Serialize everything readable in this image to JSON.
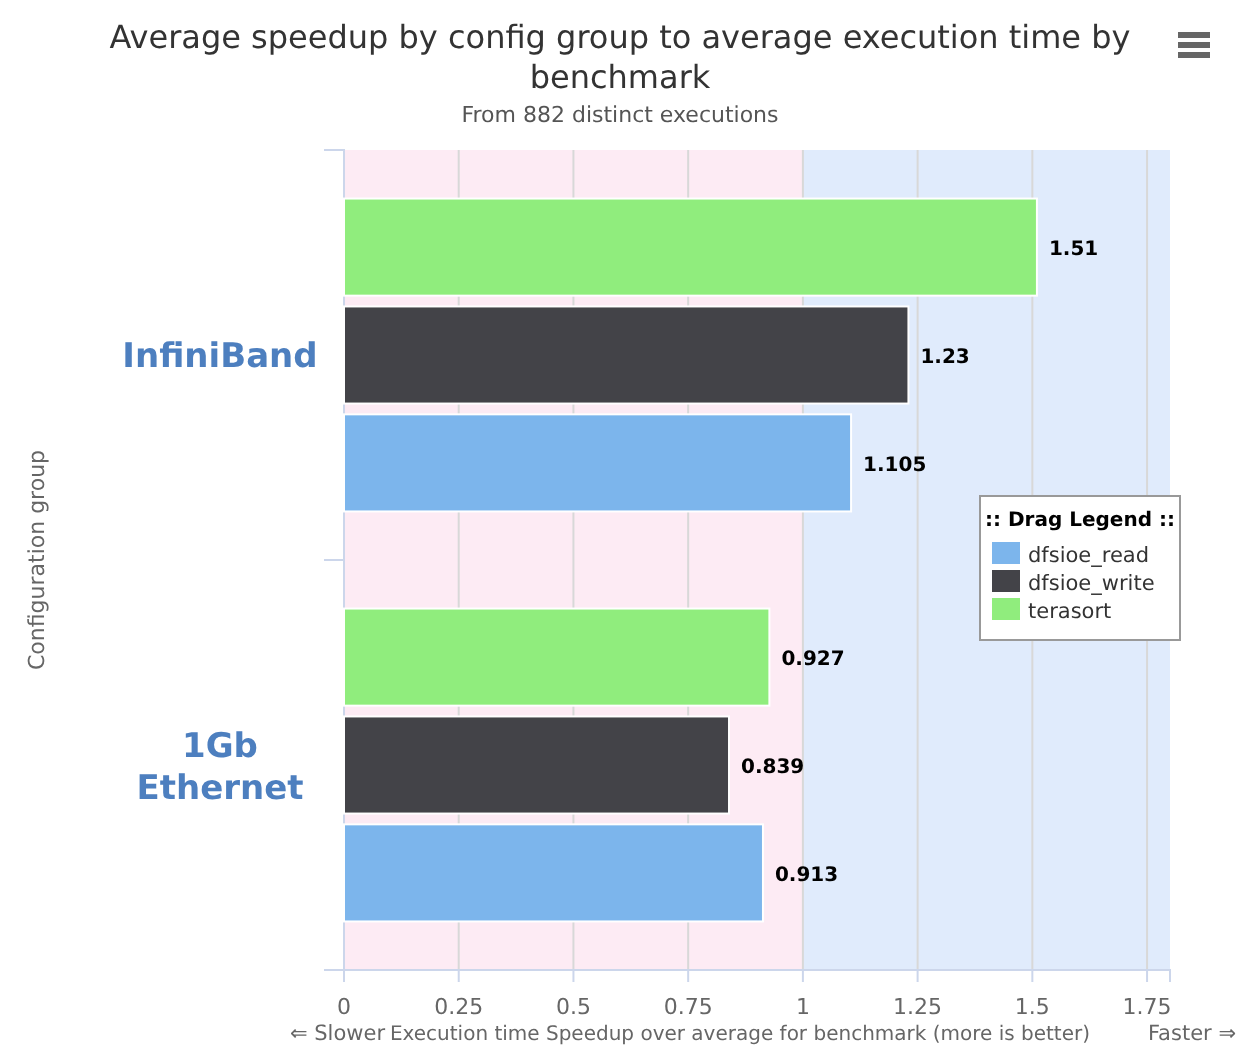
{
  "chart_data": {
    "type": "bar",
    "orientation": "horizontal",
    "title": "Average speedup by config group to average execution time by benchmark",
    "subtitle": "From 882 distinct executions",
    "xlabel": "Execution time Speedup over average for benchmark (more is better)",
    "ylabel": "Configuration group",
    "legend_title": ":: Drag Legend ::",
    "annotations": [
      "⇐ Slower",
      "Faster ⇒"
    ],
    "categories": [
      "InfiniBand",
      "1Gb Ethernet"
    ],
    "series": [
      {
        "name": "dfsioe_read",
        "color": "#7cb5ec",
        "values": [
          1.105,
          0.913
        ]
      },
      {
        "name": "dfsioe_write",
        "color": "#434348",
        "values": [
          1.23,
          0.839
        ]
      },
      {
        "name": "terasort",
        "color": "#90ed7d",
        "values": [
          1.51,
          0.927
        ]
      }
    ],
    "xlim": [
      0,
      1.8
    ],
    "xticks": [
      0,
      0.25,
      0.5,
      0.75,
      1,
      1.25,
      1.5,
      1.75
    ],
    "grid": "x",
    "data_labels": true,
    "legend": "right",
    "bands": [
      {
        "axis": "x",
        "from": 0,
        "to": 1,
        "color": "#fdebf4"
      },
      {
        "axis": "x",
        "from": 1,
        "to": 1.8,
        "color": "#e0ebfc"
      }
    ]
  }
}
